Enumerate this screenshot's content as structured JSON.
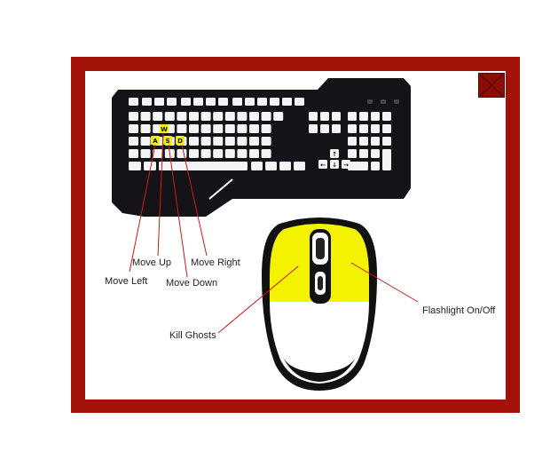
{
  "dialog": {
    "close_icon": "close-x-icon"
  },
  "keyboard": {
    "highlighted_keys": [
      "W",
      "A",
      "S",
      "D"
    ],
    "arrow_keys": [
      "↑",
      "←",
      "↓",
      "→"
    ],
    "key_color": "#f2ef00",
    "body_color": "#141418"
  },
  "mouse": {
    "highlight_color": "#f5f200"
  },
  "controls": {
    "move_up": "Move Up",
    "move_left": "Move Left",
    "move_down": "Move Down",
    "move_right": "Move Right",
    "kill_ghosts": "Kill Ghosts",
    "flashlight": "Flashlight On/Off"
  },
  "colors": {
    "frame": "#a31208",
    "leader_line": "#d01818"
  }
}
